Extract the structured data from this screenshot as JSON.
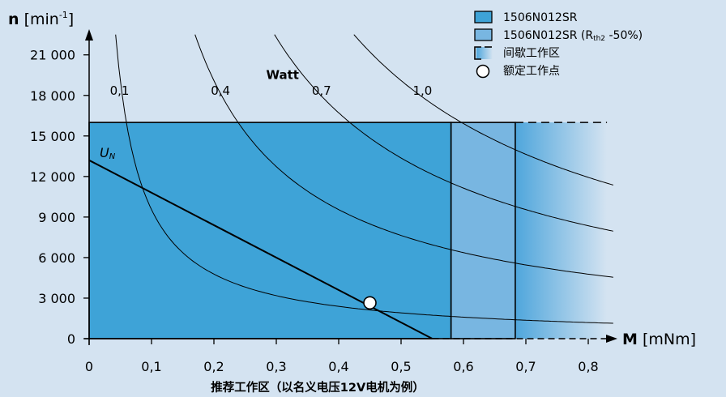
{
  "chart_data": {
    "type": "area",
    "title": "",
    "x_axis": {
      "label_bold": "M",
      "label_unit": "[mNm]",
      "min": 0,
      "max": 0.85,
      "ticks": [
        0,
        0.1,
        0.2,
        0.3,
        0.4,
        0.5,
        0.6,
        0.7,
        0.8
      ],
      "tick_labels": [
        "0",
        "0,1",
        "0,2",
        "0,3",
        "0,4",
        "0,5",
        "0,6",
        "0,7",
        "0,8"
      ]
    },
    "y_axis": {
      "label_bold": "n",
      "label_unit_pre": "[min",
      "label_unit_sup": "-1",
      "label_unit_post": "]",
      "min": 0,
      "max": 23000,
      "ticks": [
        0,
        3000,
        6000,
        9000,
        12000,
        15000,
        18000,
        21000
      ],
      "tick_labels": [
        "0",
        "3 000",
        "6 000",
        "9 000",
        "12 000",
        "15 000",
        "18 000",
        "21 000"
      ]
    },
    "regions": [
      {
        "name": "1506N012SR",
        "x_range": [
          0,
          0.58
        ],
        "y_max": 16000,
        "color": "#3ea3d7"
      },
      {
        "name": "1506N012SR (Rth2 -50%)",
        "x_range": [
          0.58,
          0.683
        ],
        "y_max": 16000,
        "color": "#78b6e1"
      },
      {
        "name": "间歇工作区",
        "x_range": [
          0.683,
          0.83
        ],
        "y_max": 16000,
        "color": "#5aa8dd"
      }
    ],
    "power_curves": {
      "title": "Watt",
      "unit": "W",
      "series": [
        {
          "label": "0,1",
          "watts": 0.1
        },
        {
          "label": "0,4",
          "watts": 0.4
        },
        {
          "label": "0,7",
          "watts": 0.7
        },
        {
          "label": "1,0",
          "watts": 1.0
        }
      ]
    },
    "voltage_line": {
      "label": "U",
      "label_sub": "N",
      "points": [
        [
          0,
          13200
        ],
        [
          0.55,
          0
        ]
      ]
    },
    "rated_point": {
      "name": "额定工作点",
      "x": 0.45,
      "y": 2650
    },
    "legend": {
      "placement": "top-right",
      "items": [
        {
          "name": "1506N012SR",
          "kind": "box",
          "color": "#3ea3d7"
        },
        {
          "name_pre": "1506N012SR (R",
          "name_sub": "th2",
          "name_post": " -50%)",
          "kind": "box",
          "color": "#78b6e1"
        },
        {
          "name": "间歇工作区",
          "kind": "dashed",
          "color": "#5aa8dd"
        },
        {
          "name": "额定工作点",
          "kind": "circle"
        }
      ]
    },
    "footnote": "推荐工作区（以名义电压12V电机为例）",
    "grid": false
  }
}
